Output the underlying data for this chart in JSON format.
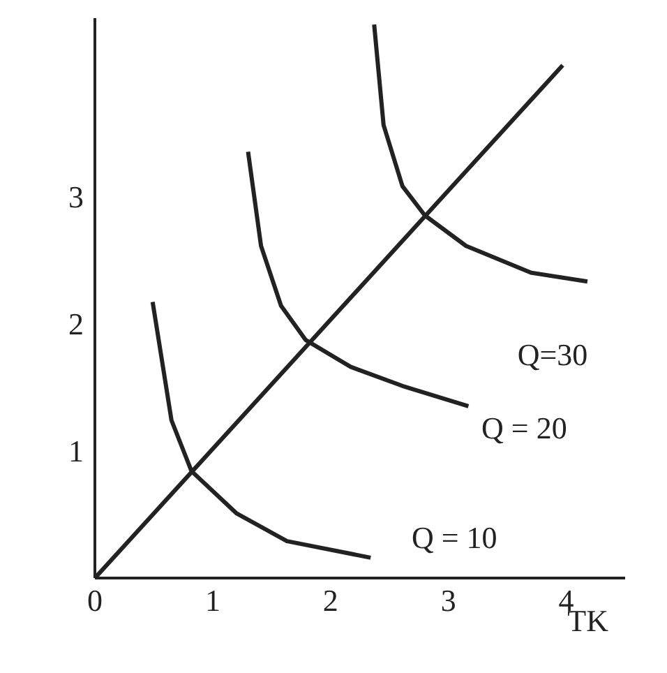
{
  "chart_data": {
    "type": "line",
    "xlabel": "TK",
    "xlim": [
      0,
      4.5
    ],
    "xticks": [
      0,
      1,
      2,
      3,
      4
    ],
    "ylim": [
      0,
      4.4
    ],
    "yticks": [
      1,
      2,
      3
    ],
    "grid": false,
    "marker": "none",
    "line_style": "solid",
    "series": [
      {
        "color": "#222222",
        "x": [
          0,
          3.97
        ],
        "values": [
          0,
          4.03
        ]
      },
      {
        "name": "Q = 10",
        "color": "#222222",
        "x": [
          0.49,
          0.65,
          0.82,
          1.2,
          1.63,
          2.34
        ],
        "values": [
          2.17,
          1.24,
          0.84,
          0.51,
          0.29,
          0.16
        ]
      },
      {
        "name": "Q = 20",
        "color": "#222222",
        "x": [
          1.3,
          1.41,
          1.58,
          1.79,
          2.17,
          2.61,
          3.17
        ],
        "values": [
          3.35,
          2.61,
          2.14,
          1.87,
          1.66,
          1.51,
          1.35
        ]
      },
      {
        "name": "Q=30",
        "color": "#222222",
        "x": [
          2.37,
          2.45,
          2.61,
          2.8,
          3.15,
          3.7,
          4.18
        ],
        "values": [
          4.35,
          3.56,
          3.08,
          2.85,
          2.61,
          2.4,
          2.33
        ]
      }
    ]
  }
}
